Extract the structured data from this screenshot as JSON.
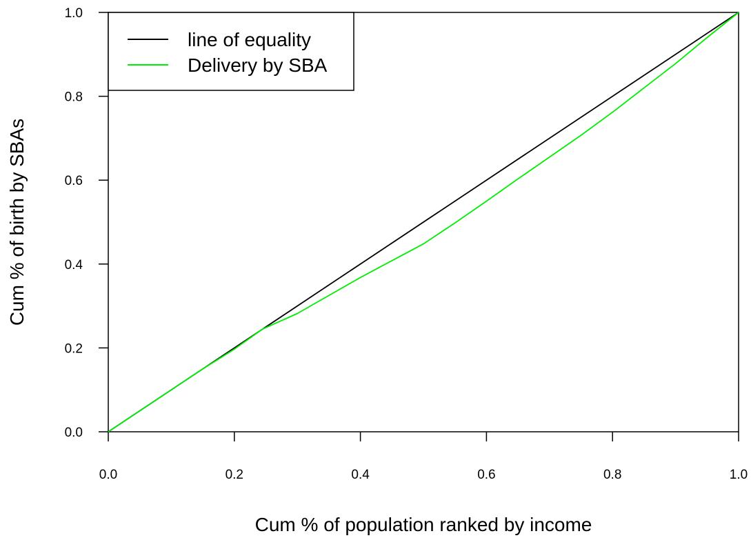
{
  "chart_data": {
    "type": "line",
    "xlabel": "Cum % of population ranked by income",
    "ylabel": "Cum % of birth by SBAs",
    "xlim": [
      0,
      1
    ],
    "ylim": [
      0,
      1
    ],
    "x_ticks": [
      "0.0",
      "0.2",
      "0.4",
      "0.6",
      "0.8",
      "1.0"
    ],
    "y_ticks": [
      "0.0",
      "0.2",
      "0.4",
      "0.6",
      "0.8",
      "1.0"
    ],
    "legend_position": "top-left",
    "grid": false,
    "series": [
      {
        "name": "line of equality",
        "color": "#000000",
        "x": [
          0,
          1
        ],
        "y": [
          0,
          1
        ]
      },
      {
        "name": "Delivery by SBA",
        "color": "#00ee00",
        "x": [
          0,
          0.05,
          0.1,
          0.15,
          0.2,
          0.245,
          0.3,
          0.35,
          0.4,
          0.45,
          0.5,
          0.55,
          0.6,
          0.65,
          0.7,
          0.75,
          0.8,
          0.85,
          0.9,
          0.95,
          1.0
        ],
        "y": [
          0,
          0.05,
          0.1,
          0.15,
          0.197,
          0.245,
          0.282,
          0.325,
          0.368,
          0.408,
          0.448,
          0.498,
          0.55,
          0.603,
          0.655,
          0.707,
          0.762,
          0.82,
          0.878,
          0.94,
          1.0
        ]
      }
    ]
  }
}
